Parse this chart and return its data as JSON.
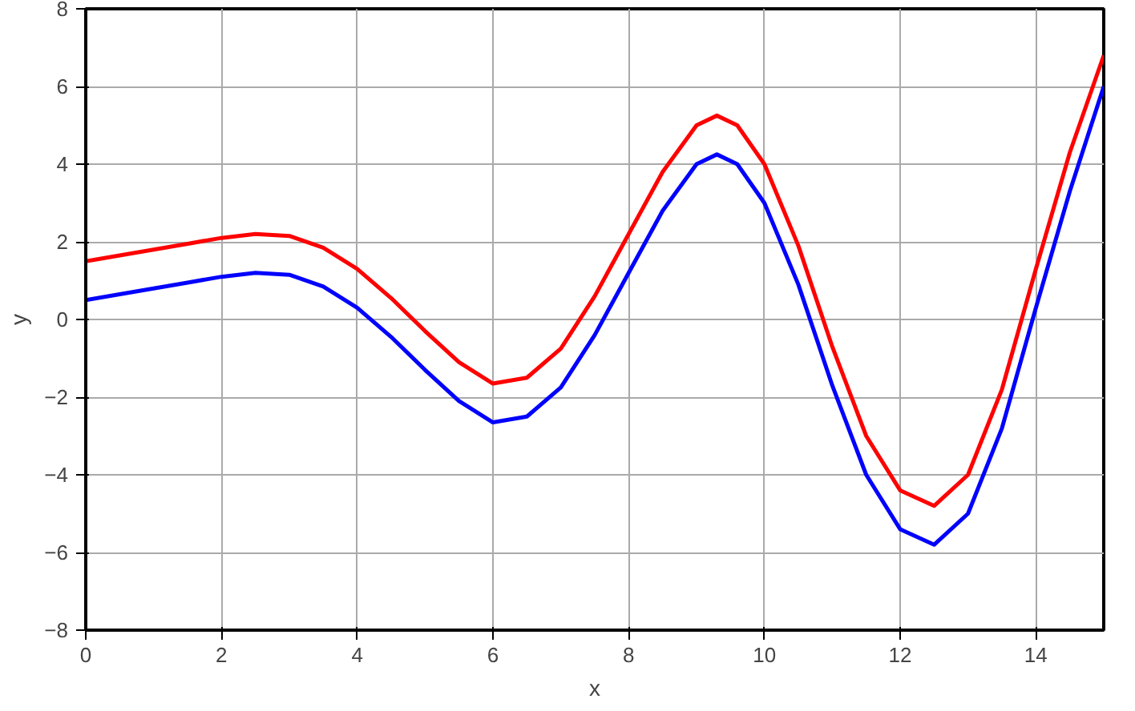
{
  "chart_data": {
    "type": "line",
    "xlabel": "x",
    "ylabel": "y",
    "xlim": [
      0,
      15
    ],
    "ylim": [
      -8,
      8
    ],
    "xticks": [
      0,
      2,
      4,
      6,
      8,
      10,
      12,
      14
    ],
    "yticks": [
      -8,
      -6,
      -4,
      -2,
      0,
      2,
      4,
      6,
      8
    ],
    "grid": true,
    "marker": "none",
    "line_style": "solid",
    "x": [
      0,
      0.5,
      1,
      1.5,
      2,
      2.5,
      3,
      3.5,
      4,
      4.5,
      5,
      5.5,
      6,
      6.5,
      7,
      7.5,
      8,
      8.5,
      9,
      9.3,
      9.6,
      10,
      10.5,
      11,
      11.5,
      12,
      12.5,
      13,
      13.5,
      14,
      14.5,
      15
    ],
    "series": [
      {
        "color": "#ff0000",
        "values": [
          1.5,
          1.65,
          1.8,
          1.95,
          2.1,
          2.2,
          2.15,
          1.85,
          1.3,
          0.55,
          -0.3,
          -1.1,
          -1.65,
          -1.5,
          -0.75,
          0.6,
          2.2,
          3.8,
          5.0,
          5.25,
          5.0,
          4.0,
          1.9,
          -0.7,
          -3.0,
          -4.4,
          -4.8,
          -4.0,
          -1.8,
          1.3,
          4.3,
          6.8
        ]
      },
      {
        "color": "#0000ff",
        "values": [
          0.5,
          0.65,
          0.8,
          0.95,
          1.1,
          1.2,
          1.15,
          0.85,
          0.3,
          -0.45,
          -1.3,
          -2.1,
          -2.65,
          -2.5,
          -1.75,
          -0.4,
          1.2,
          2.8,
          4.0,
          4.25,
          4.0,
          3.0,
          0.9,
          -1.7,
          -4.0,
          -5.4,
          -5.8,
          -5.0,
          -2.8,
          0.3,
          3.3,
          6.0
        ]
      }
    ]
  }
}
